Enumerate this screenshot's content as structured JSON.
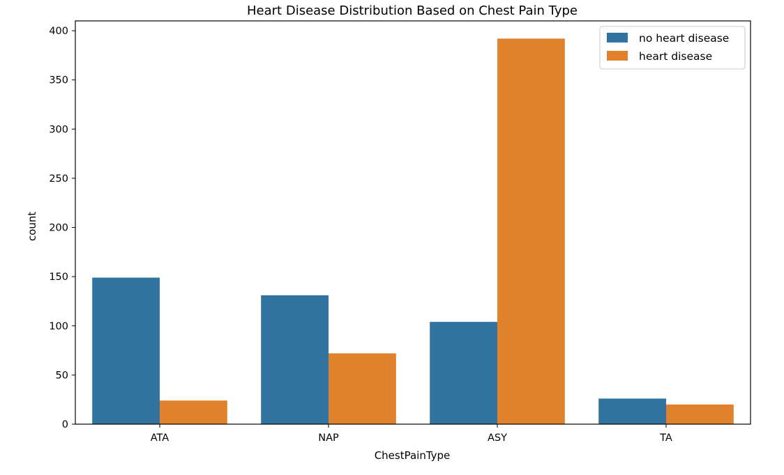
{
  "chart_data": {
    "type": "bar",
    "title": "Heart Disease Distribution Based on Chest Pain Type",
    "xlabel": "ChestPainType",
    "ylabel": "count",
    "categories": [
      "ATA",
      "NAP",
      "ASY",
      "TA"
    ],
    "ylim": [
      0,
      410
    ],
    "yticks": [
      0,
      50,
      100,
      150,
      200,
      250,
      300,
      350,
      400
    ],
    "grid": false,
    "legend_position": "top-right",
    "series": [
      {
        "name": "no heart disease",
        "color": "#3274a1",
        "values": [
          149,
          131,
          104,
          26
        ]
      },
      {
        "name": "heart disease",
        "color": "#e1812c",
        "values": [
          24,
          72,
          392,
          20
        ]
      }
    ]
  }
}
